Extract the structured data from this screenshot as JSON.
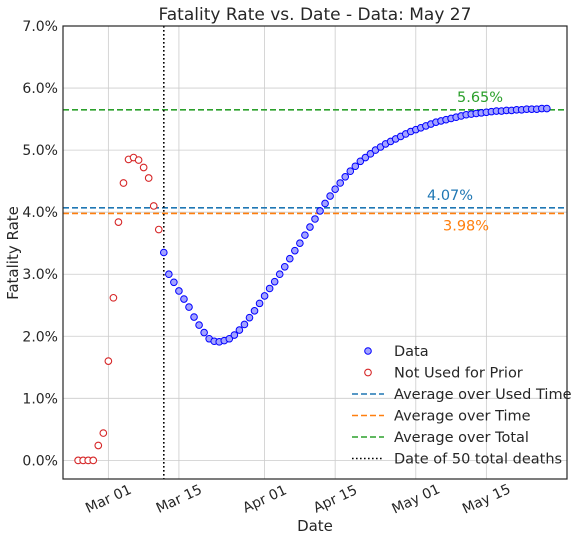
{
  "chart_data": {
    "type": "scatter",
    "title": "Fatality Rate vs. Date - Data: May 27",
    "xlabel": "Date",
    "ylabel": "Fatality Rate",
    "xlim": [
      "2020-02-21",
      "2020-05-31"
    ],
    "ylim": [
      -0.3,
      7.0
    ],
    "y_unit": "%",
    "grid": true,
    "x_ticks": [
      {
        "date": "2020-03-01",
        "label": "Mar 01"
      },
      {
        "date": "2020-03-15",
        "label": "Mar 15"
      },
      {
        "date": "2020-04-01",
        "label": "Apr 01"
      },
      {
        "date": "2020-04-15",
        "label": "Apr 15"
      },
      {
        "date": "2020-05-01",
        "label": "May 01"
      },
      {
        "date": "2020-05-15",
        "label": "May 15"
      }
    ],
    "y_ticks": [
      {
        "value": 0,
        "label": "0.0%"
      },
      {
        "value": 1,
        "label": "1.0%"
      },
      {
        "value": 2,
        "label": "2.0%"
      },
      {
        "value": 3,
        "label": "3.0%"
      },
      {
        "value": 4,
        "label": "4.0%"
      },
      {
        "value": 5,
        "label": "5.0%"
      },
      {
        "value": 6,
        "label": "6.0%"
      },
      {
        "value": 7,
        "label": "7.0%"
      }
    ],
    "series": [
      {
        "name": "Data",
        "kind": "scatter",
        "marker": "filled-circle",
        "face_color": "#a3a3ff",
        "edge_color": "#0000ff",
        "dates": [
          "2020-03-12",
          "2020-03-13",
          "2020-03-14",
          "2020-03-15",
          "2020-03-16",
          "2020-03-17",
          "2020-03-18",
          "2020-03-19",
          "2020-03-20",
          "2020-03-21",
          "2020-03-22",
          "2020-03-23",
          "2020-03-24",
          "2020-03-25",
          "2020-03-26",
          "2020-03-27",
          "2020-03-28",
          "2020-03-29",
          "2020-03-30",
          "2020-03-31",
          "2020-04-01",
          "2020-04-02",
          "2020-04-03",
          "2020-04-04",
          "2020-04-05",
          "2020-04-06",
          "2020-04-07",
          "2020-04-08",
          "2020-04-09",
          "2020-04-10",
          "2020-04-11",
          "2020-04-12",
          "2020-04-13",
          "2020-04-14",
          "2020-04-15",
          "2020-04-16",
          "2020-04-17",
          "2020-04-18",
          "2020-04-19",
          "2020-04-20",
          "2020-04-21",
          "2020-04-22",
          "2020-04-23",
          "2020-04-24",
          "2020-04-25",
          "2020-04-26",
          "2020-04-27",
          "2020-04-28",
          "2020-04-29",
          "2020-04-30",
          "2020-05-01",
          "2020-05-02",
          "2020-05-03",
          "2020-05-04",
          "2020-05-05",
          "2020-05-06",
          "2020-05-07",
          "2020-05-08",
          "2020-05-09",
          "2020-05-10",
          "2020-05-11",
          "2020-05-12",
          "2020-05-13",
          "2020-05-14",
          "2020-05-15",
          "2020-05-16",
          "2020-05-17",
          "2020-05-18",
          "2020-05-19",
          "2020-05-20",
          "2020-05-21",
          "2020-05-22",
          "2020-05-23",
          "2020-05-24",
          "2020-05-25",
          "2020-05-26",
          "2020-05-27"
        ],
        "values": [
          3.35,
          3.0,
          2.87,
          2.73,
          2.6,
          2.47,
          2.31,
          2.18,
          2.06,
          1.96,
          1.92,
          1.91,
          1.93,
          1.96,
          2.02,
          2.1,
          2.19,
          2.3,
          2.41,
          2.53,
          2.65,
          2.77,
          2.88,
          3.0,
          3.12,
          3.25,
          3.38,
          3.5,
          3.63,
          3.76,
          3.89,
          4.02,
          4.14,
          4.26,
          4.37,
          4.47,
          4.57,
          4.66,
          4.74,
          4.82,
          4.88,
          4.94,
          5.0,
          5.05,
          5.1,
          5.14,
          5.18,
          5.22,
          5.26,
          5.3,
          5.33,
          5.36,
          5.39,
          5.42,
          5.45,
          5.47,
          5.49,
          5.51,
          5.53,
          5.55,
          5.57,
          5.58,
          5.59,
          5.6,
          5.61,
          5.62,
          5.63,
          5.63,
          5.64,
          5.64,
          5.65,
          5.65,
          5.66,
          5.66,
          5.66,
          5.67,
          5.67
        ]
      },
      {
        "name": "Not Used for Prior",
        "kind": "scatter",
        "marker": "open-circle",
        "edge_color": "#d62728",
        "dates": [
          "2020-02-24",
          "2020-02-25",
          "2020-02-26",
          "2020-02-27",
          "2020-02-28",
          "2020-02-29",
          "2020-03-01",
          "2020-03-02",
          "2020-03-03",
          "2020-03-04",
          "2020-03-05",
          "2020-03-06",
          "2020-03-07",
          "2020-03-08",
          "2020-03-09",
          "2020-03-10",
          "2020-03-11"
        ],
        "values": [
          0.0,
          0.0,
          0.0,
          0.0,
          0.24,
          0.44,
          1.6,
          2.62,
          3.84,
          4.47,
          4.85,
          4.88,
          4.84,
          4.72,
          4.55,
          4.1,
          3.72
        ]
      },
      {
        "name": "Average over Used Time",
        "kind": "hline",
        "style": "dashed",
        "color": "#1f77b4",
        "value": 4.07,
        "label": "4.07%"
      },
      {
        "name": "Average over Time",
        "kind": "hline",
        "style": "dashed",
        "color": "#ff7f0e",
        "value": 3.98,
        "label": "3.98%"
      },
      {
        "name": "Average over Total",
        "kind": "hline",
        "style": "dashed",
        "color": "#2ca02c",
        "value": 5.65,
        "label": "5.65%"
      },
      {
        "name": "Date of 50 total deaths",
        "kind": "vline",
        "style": "dotted",
        "color": "#000000",
        "date": "2020-03-12"
      }
    ],
    "legend": {
      "placement": "lower-right",
      "entries": [
        "Data",
        "Not Used for Prior",
        "Average over Used Time",
        "Average over Time",
        "Average over Total",
        "Date of 50 total deaths"
      ]
    }
  }
}
